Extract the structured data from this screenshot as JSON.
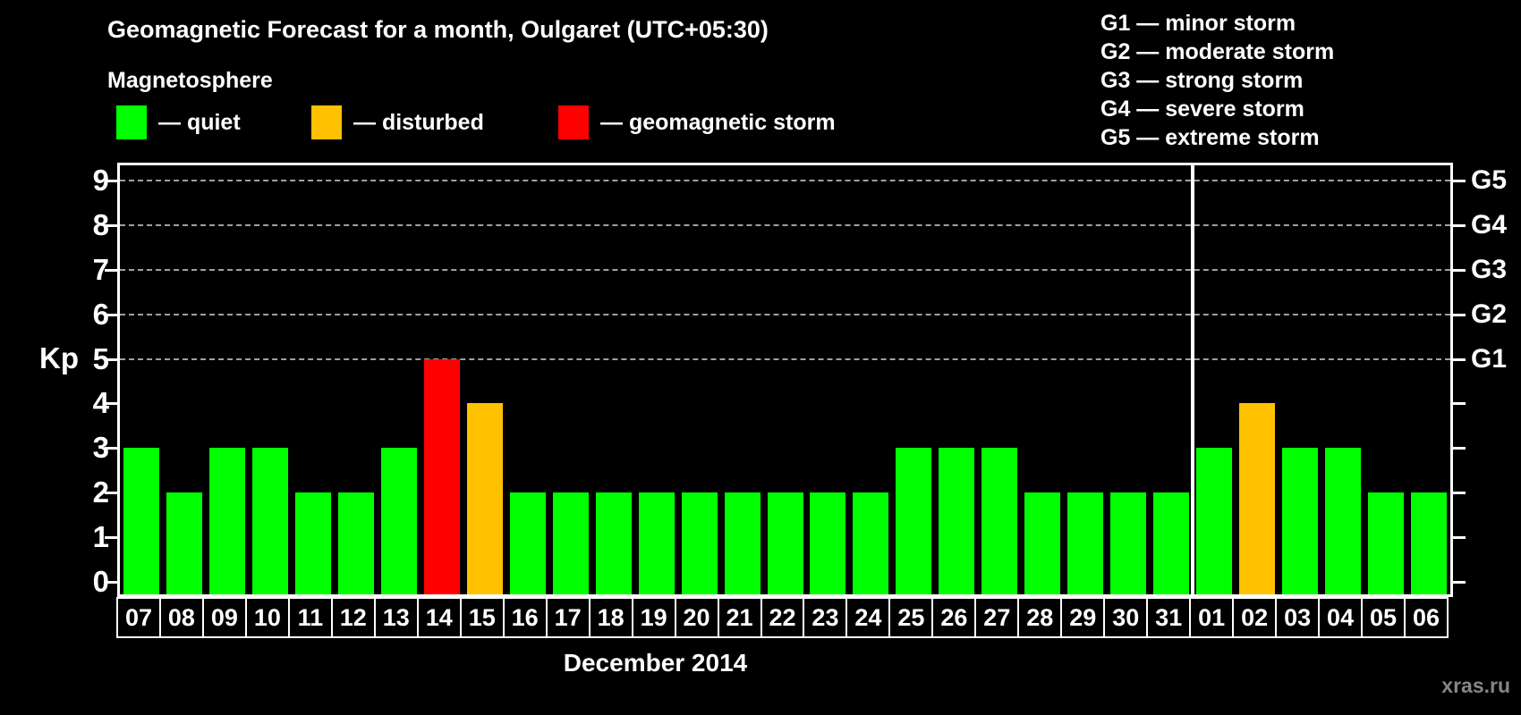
{
  "title": "Geomagnetic Forecast for a month, Oulgaret (UTC+05:30)",
  "legend": {
    "title": "Magnetosphere",
    "items": [
      {
        "name": "quiet",
        "label": "— quiet",
        "color": "#00ff00"
      },
      {
        "name": "disturbed",
        "label": "— disturbed",
        "color": "#ffc000"
      },
      {
        "name": "storm",
        "label": "— geomagnetic storm",
        "color": "#ff0000"
      }
    ]
  },
  "storm_scale_legend": [
    "G1 — minor storm",
    "G2 — moderate storm",
    "G3 — strong storm",
    "G4 — severe storm",
    "G5 — extreme storm"
  ],
  "watermark": "xras.ru",
  "chart_data": {
    "type": "bar",
    "title": "Geomagnetic Forecast for a month, Oulgaret (UTC+05:30)",
    "ylabel": "Kp",
    "xlabel": "December 2014",
    "ylim": [
      0,
      9
    ],
    "y_ticks": [
      0,
      1,
      2,
      3,
      4,
      5,
      6,
      7,
      8,
      9
    ],
    "gridlines_at": [
      5,
      6,
      7,
      8,
      9
    ],
    "grid": "dashed",
    "legend_position": "top",
    "right_axis_labels": [
      {
        "kp": 5,
        "label": "G1"
      },
      {
        "kp": 6,
        "label": "G2"
      },
      {
        "kp": 7,
        "label": "G3"
      },
      {
        "kp": 8,
        "label": "G4"
      },
      {
        "kp": 9,
        "label": "G5"
      }
    ],
    "categories": [
      "07",
      "08",
      "09",
      "10",
      "11",
      "12",
      "13",
      "14",
      "15",
      "16",
      "17",
      "18",
      "19",
      "20",
      "21",
      "22",
      "23",
      "24",
      "25",
      "26",
      "27",
      "28",
      "29",
      "30",
      "31",
      "01",
      "02",
      "03",
      "04",
      "05",
      "06"
    ],
    "values": [
      3,
      2,
      3,
      3,
      2,
      2,
      3,
      5,
      4,
      2,
      2,
      2,
      2,
      2,
      2,
      2,
      2,
      2,
      3,
      3,
      3,
      2,
      2,
      2,
      2,
      3,
      4,
      3,
      3,
      2,
      2
    ],
    "statuses": [
      "quiet",
      "quiet",
      "quiet",
      "quiet",
      "quiet",
      "quiet",
      "quiet",
      "storm",
      "disturbed",
      "quiet",
      "quiet",
      "quiet",
      "quiet",
      "quiet",
      "quiet",
      "quiet",
      "quiet",
      "quiet",
      "quiet",
      "quiet",
      "quiet",
      "quiet",
      "quiet",
      "quiet",
      "quiet",
      "quiet",
      "disturbed",
      "quiet",
      "quiet",
      "quiet",
      "quiet"
    ],
    "status_colors": {
      "quiet": "#00ff00",
      "disturbed": "#ffc000",
      "storm": "#ff0000"
    },
    "month_divider_after_index": 24
  }
}
